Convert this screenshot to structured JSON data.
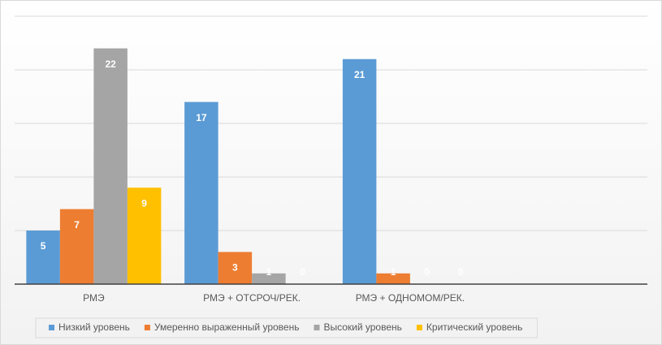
{
  "chart_data": {
    "type": "bar",
    "categories": [
      "РМЭ",
      "РМЭ + ОТСРОЧ/РЕК.",
      "РМЭ + ОДНОМОМ/РЕК.",
      null
    ],
    "series": [
      {
        "name": "Низкий уровень",
        "color": "#5b9bd5",
        "values": [
          5,
          17,
          21,
          null
        ]
      },
      {
        "name": "Умеренно выраженный уровень",
        "color": "#ed7d31",
        "values": [
          7,
          3,
          1,
          null
        ]
      },
      {
        "name": "Высокий уровень",
        "color": "#a5a5a5",
        "values": [
          22,
          1,
          0,
          null
        ]
      },
      {
        "name": "Критический уровень",
        "color": "#ffc000",
        "values": [
          9,
          0,
          0,
          null
        ]
      }
    ],
    "ylim": [
      0,
      25
    ],
    "yticks": [
      0,
      5,
      10,
      15,
      20,
      25
    ],
    "grid": true,
    "legend": "bottom"
  }
}
